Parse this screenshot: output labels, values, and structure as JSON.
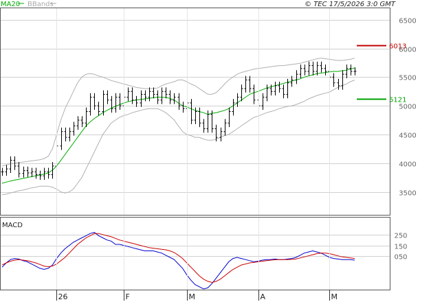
{
  "header": {
    "ma_label": "MA20",
    "bb_label": "BBands",
    "copyright": "© TEC 17/5/2026 3:0 GMT"
  },
  "chart_data": [
    {
      "type": "line",
      "subtype": "ohlc-price",
      "title": "",
      "xlabel": "",
      "ylabel": "",
      "ylim": [
        3100,
        6700
      ],
      "yticks": [
        3500,
        4000,
        4500,
        5000,
        5500,
        6000,
        6500
      ],
      "ytick_labels": [
        "3500",
        "4000",
        "4500",
        "5000",
        "5500",
        "6000",
        "6500"
      ],
      "grid": true,
      "xticks": [
        {
          "label": "26",
          "index": 13
        },
        {
          "label": "F",
          "index": 29
        },
        {
          "label": "M",
          "index": 44
        },
        {
          "label": "A",
          "index": 61
        },
        {
          "label": "M",
          "index": 78
        }
      ],
      "close": [
        3850,
        3900,
        4050,
        3950,
        3820,
        3870,
        3830,
        3850,
        3800,
        3780,
        3850,
        3800,
        3950,
        4300,
        4550,
        4450,
        4550,
        4650,
        4750,
        4700,
        4900,
        5150,
        5000,
        4900,
        5200,
        5100,
        4950,
        5150,
        5000,
        5150,
        5250,
        5100,
        5050,
        5200,
        5150,
        5250,
        5200,
        5100,
        5250,
        5200,
        5100,
        5150,
        5000,
        4950,
        5050,
        4750,
        4900,
        4700,
        4600,
        4850,
        4600,
        4450,
        4550,
        4700,
        4900,
        5050,
        5150,
        5300,
        5450,
        5300,
        5100,
        5000,
        5150,
        5300,
        5250,
        5350,
        5300,
        5200,
        5400,
        5450,
        5550,
        5650,
        5600,
        5700,
        5600,
        5700,
        5650,
        5600,
        5500,
        5400,
        5350,
        5550,
        5650,
        5600,
        5600
      ],
      "ma20": [
        3650,
        3670,
        3690,
        3705,
        3720,
        3735,
        3750,
        3765,
        3780,
        3795,
        3810,
        3830,
        3880,
        3950,
        4050,
        4150,
        4250,
        4350,
        4450,
        4550,
        4650,
        4720,
        4780,
        4830,
        4880,
        4920,
        4960,
        4990,
        5020,
        5050,
        5070,
        5090,
        5100,
        5110,
        5120,
        5130,
        5140,
        5150,
        5150,
        5145,
        5130,
        5100,
        5050,
        5000,
        4980,
        4950,
        4920,
        4900,
        4880,
        4850,
        4870,
        4880,
        4900,
        4920,
        4950,
        5000,
        5050,
        5100,
        5150,
        5200,
        5230,
        5250,
        5280,
        5310,
        5330,
        5350,
        5370,
        5390,
        5410,
        5430,
        5450,
        5470,
        5500,
        5520,
        5540,
        5560,
        5570,
        5580,
        5590,
        5600,
        5600,
        5610,
        5620,
        5640,
        5660
      ],
      "bb_upper": [
        3950,
        3970,
        3990,
        4000,
        4010,
        4020,
        4030,
        4040,
        4050,
        4060,
        4080,
        4120,
        4250,
        4500,
        4750,
        4950,
        5100,
        5250,
        5400,
        5500,
        5550,
        5560,
        5550,
        5520,
        5500,
        5470,
        5440,
        5420,
        5400,
        5380,
        5360,
        5340,
        5320,
        5310,
        5300,
        5300,
        5300,
        5310,
        5350,
        5380,
        5400,
        5420,
        5450,
        5450,
        5420,
        5380,
        5350,
        5300,
        5250,
        5200,
        5200,
        5230,
        5300,
        5380,
        5450,
        5500,
        5550,
        5580,
        5600,
        5620,
        5640,
        5650,
        5660,
        5670,
        5680,
        5690,
        5700,
        5700,
        5710,
        5720,
        5730,
        5740,
        5760,
        5780,
        5800,
        5820,
        5830,
        5820,
        5810,
        5800,
        5790,
        5790,
        5800,
        5810,
        5830
      ],
      "bb_lower": [
        3450,
        3460,
        3480,
        3500,
        3520,
        3530,
        3550,
        3570,
        3580,
        3600,
        3600,
        3600,
        3580,
        3550,
        3500,
        3480,
        3500,
        3550,
        3650,
        3750,
        3900,
        4050,
        4200,
        4350,
        4500,
        4600,
        4700,
        4750,
        4800,
        4830,
        4850,
        4880,
        4900,
        4920,
        4940,
        4950,
        4950,
        4950,
        4920,
        4880,
        4820,
        4750,
        4650,
        4550,
        4500,
        4480,
        4450,
        4450,
        4420,
        4400,
        4400,
        4420,
        4450,
        4480,
        4500,
        4550,
        4600,
        4650,
        4700,
        4750,
        4800,
        4820,
        4850,
        4880,
        4900,
        4920,
        4950,
        4970,
        4990,
        5000,
        5020,
        5050,
        5080,
        5120,
        5150,
        5180,
        5200,
        5220,
        5240,
        5280,
        5320,
        5350,
        5380,
        5420,
        5450
      ],
      "annotations": [
        {
          "label": "6013",
          "value": 6050,
          "color": "#c00000"
        },
        {
          "label": "5121",
          "value": 5121,
          "color": "#00a000"
        }
      ],
      "series_colors": {
        "bars": "#000000",
        "ma20": "#00aa00",
        "bbands": "#aaaaaa"
      }
    },
    {
      "type": "line",
      "title": "MACD",
      "ylim": [
        -250,
        400
      ],
      "yticks": [
        250,
        150,
        50
      ],
      "ytick_labels": [
        "250",
        "150",
        "050"
      ],
      "grid": true,
      "series": [
        {
          "values": [
            -50,
            -10,
            20,
            30,
            25,
            10,
            0,
            -20,
            -40,
            -60,
            -70,
            -60,
            -30,
            30,
            80,
            120,
            150,
            180,
            200,
            220,
            240,
            260,
            270,
            240,
            220,
            200,
            190,
            160,
            160,
            150,
            140,
            130,
            120,
            110,
            100,
            100,
            100,
            90,
            80,
            60,
            40,
            20,
            -20,
            -60,
            -120,
            -170,
            -210,
            -230,
            -250,
            -240,
            -200,
            -150,
            -100,
            -50,
            0,
            30,
            40,
            30,
            20,
            10,
            0,
            5,
            15,
            20,
            20,
            25,
            20,
            20,
            25,
            30,
            40,
            60,
            80,
            90,
            100,
            90,
            80,
            60,
            40,
            30,
            25,
            20,
            20,
            20,
            15
          ],
          "color": "#0000cc"
        },
        {
          "values": [
            -30,
            -10,
            5,
            15,
            20,
            15,
            10,
            0,
            -10,
            -25,
            -40,
            -45,
            -40,
            -20,
            10,
            40,
            80,
            120,
            160,
            190,
            220,
            240,
            260,
            260,
            250,
            240,
            230,
            215,
            200,
            190,
            180,
            170,
            160,
            150,
            140,
            130,
            125,
            120,
            115,
            110,
            100,
            85,
            60,
            30,
            -10,
            -50,
            -90,
            -130,
            -160,
            -180,
            -190,
            -180,
            -160,
            -130,
            -100,
            -70,
            -50,
            -30,
            -20,
            -10,
            -5,
            0,
            5,
            10,
            15,
            18,
            20,
            20,
            20,
            22,
            25,
            35,
            45,
            55,
            65,
            75,
            80,
            80,
            75,
            65,
            55,
            45,
            40,
            35,
            30
          ],
          "color": "#cc0000"
        }
      ],
      "xticks": [
        {
          "label": "26",
          "index": 13
        },
        {
          "label": "F",
          "index": 29
        },
        {
          "label": "M",
          "index": 44
        },
        {
          "label": "A",
          "index": 61
        },
        {
          "label": "M",
          "index": 78
        }
      ]
    }
  ]
}
